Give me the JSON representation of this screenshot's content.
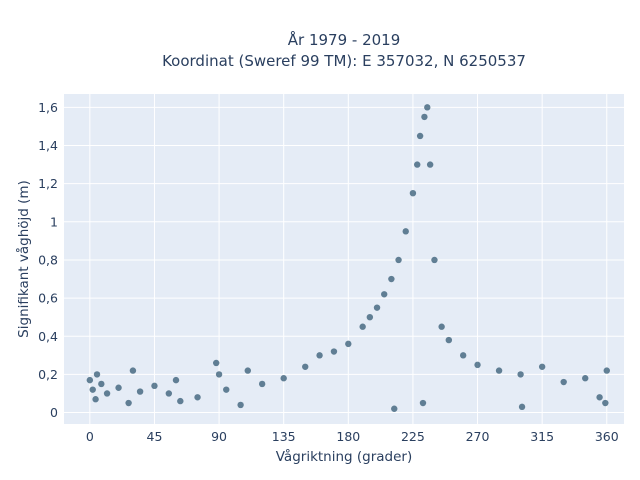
{
  "chart_data": {
    "type": "scatter",
    "title_line1": "År 1979 - 2019",
    "title_line2": "Koordinat (Sweref 99 TM): E 357032, N 6250537",
    "xlabel": "Vågriktning (grader)",
    "ylabel": "Signifikant våghöjd (m)",
    "xlim": [
      -18,
      372
    ],
    "ylim": [
      -0.06,
      1.67
    ],
    "x_ticks": [
      0,
      45,
      90,
      135,
      180,
      225,
      270,
      315,
      360
    ],
    "x_tick_labels": [
      "0",
      "45",
      "90",
      "135",
      "180",
      "225",
      "270",
      "315",
      "360"
    ],
    "y_ticks": [
      0,
      0.2,
      0.4,
      0.6,
      0.8,
      1.0,
      1.2,
      1.4,
      1.6
    ],
    "y_tick_labels": [
      "0",
      "0,2",
      "0,4",
      "0,6",
      "0,8",
      "1",
      "1,2",
      "1,4",
      "1,6"
    ],
    "marker_color": "#335a73",
    "marker_opacity": 0.75,
    "grid": true,
    "background": "#e5ecf6",
    "series": [
      {
        "points": [
          [
            0,
            0.17
          ],
          [
            2,
            0.12
          ],
          [
            5,
            0.2
          ],
          [
            8,
            0.15
          ],
          [
            12,
            0.1
          ],
          [
            20,
            0.13
          ],
          [
            30,
            0.22
          ],
          [
            35,
            0.11
          ],
          [
            45,
            0.14
          ],
          [
            55,
            0.1
          ],
          [
            60,
            0.17
          ],
          [
            75,
            0.08
          ],
          [
            88,
            0.26
          ],
          [
            90,
            0.2
          ],
          [
            95,
            0.12
          ],
          [
            105,
            0.04
          ],
          [
            110,
            0.22
          ],
          [
            120,
            0.15
          ],
          [
            135,
            0.18
          ],
          [
            150,
            0.24
          ],
          [
            160,
            0.3
          ],
          [
            170,
            0.32
          ],
          [
            180,
            0.36
          ],
          [
            190,
            0.45
          ],
          [
            195,
            0.5
          ],
          [
            200,
            0.55
          ],
          [
            205,
            0.62
          ],
          [
            210,
            0.7
          ],
          [
            215,
            0.8
          ],
          [
            220,
            0.95
          ],
          [
            225,
            1.15
          ],
          [
            228,
            1.3
          ],
          [
            230,
            1.45
          ],
          [
            233,
            1.55
          ],
          [
            235,
            1.6
          ],
          [
            237,
            1.3
          ],
          [
            240,
            0.8
          ],
          [
            245,
            0.45
          ],
          [
            250,
            0.38
          ],
          [
            260,
            0.3
          ],
          [
            270,
            0.25
          ],
          [
            285,
            0.22
          ],
          [
            300,
            0.2
          ],
          [
            315,
            0.24
          ],
          [
            330,
            0.16
          ],
          [
            345,
            0.18
          ],
          [
            355,
            0.08
          ],
          [
            360,
            0.22
          ],
          [
            4,
            0.07
          ],
          [
            27,
            0.05
          ],
          [
            63,
            0.06
          ],
          [
            212,
            0.02
          ],
          [
            232,
            0.05
          ],
          [
            301,
            0.03
          ],
          [
            359,
            0.05
          ]
        ]
      }
    ]
  }
}
